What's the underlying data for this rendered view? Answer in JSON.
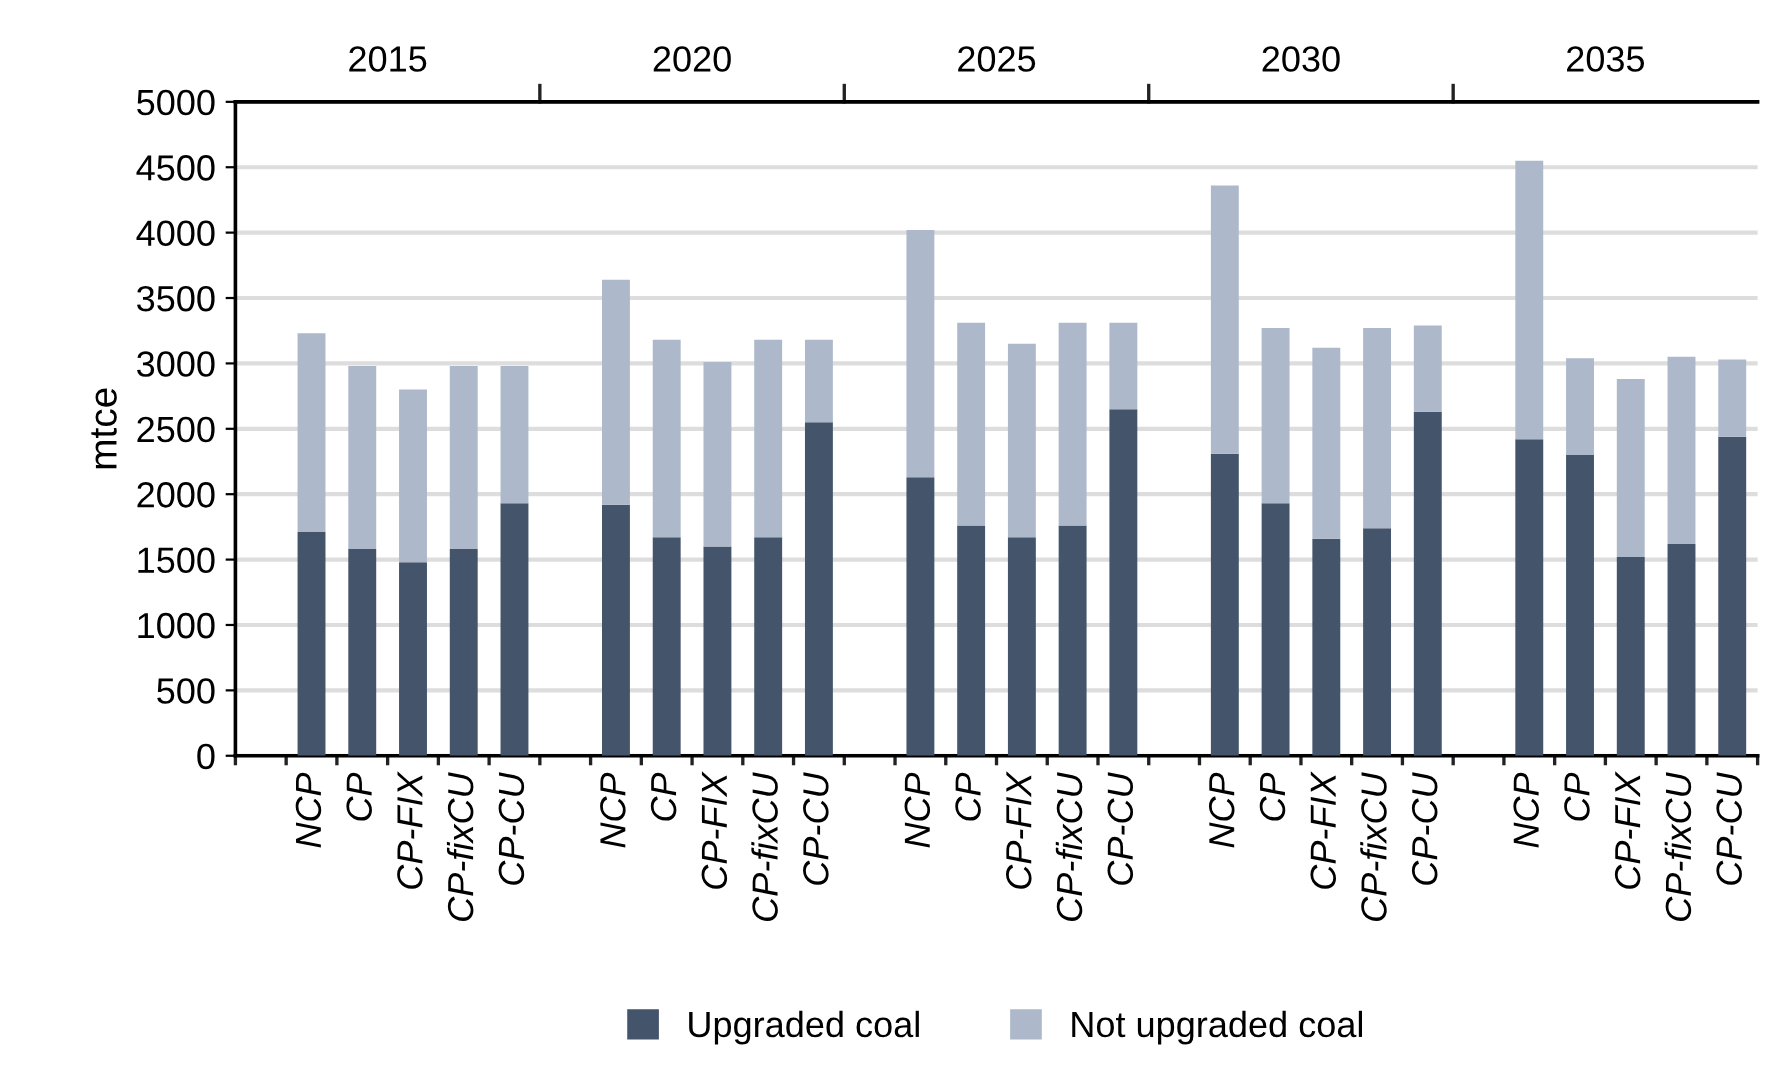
{
  "chart_data": {
    "type": "bar",
    "stacked": true,
    "ylabel": "mtce",
    "categories": [
      null,
      "NCP",
      "CP",
      "CP-FIX",
      "CP-fixCU",
      "CP-CU",
      null,
      "NCP",
      "CP",
      "CP-FIX",
      "CP-fixCU",
      "CP-CU",
      null,
      "NCP",
      "CP",
      "CP-FIX",
      "CP-fixCU",
      "CP-CU",
      null,
      "NCP",
      "CP",
      "CP-FIX",
      "CP-fixCU",
      "CP-CU",
      null,
      "NCP",
      "CP",
      "CP-FIX",
      "CP-fixCU",
      "CP-CU"
    ],
    "series": [
      {
        "name": "Upgraded coal",
        "color": "#44546a",
        "values": [
          null,
          1710,
          1580,
          1480,
          1580,
          1930,
          null,
          1920,
          1670,
          1600,
          1670,
          2550,
          null,
          2130,
          1760,
          1670,
          1760,
          2650,
          null,
          2310,
          1930,
          1660,
          1740,
          2630,
          null,
          2420,
          2300,
          1520,
          1620,
          2440
        ]
      },
      {
        "name": "Not upgraded coal",
        "color": "#adb9ca",
        "values": [
          null,
          1520,
          1400,
          1320,
          1400,
          1050,
          null,
          1720,
          1510,
          1410,
          1510,
          630,
          null,
          1890,
          1550,
          1480,
          1550,
          660,
          null,
          2050,
          1340,
          1460,
          1530,
          660,
          null,
          2130,
          740,
          1360,
          1430,
          590
        ]
      }
    ],
    "ylim": [
      0,
      5000
    ],
    "yticks": [
      0,
      500,
      1000,
      1500,
      2000,
      2500,
      3000,
      3500,
      4000,
      4500,
      5000
    ],
    "grid": "y",
    "legend": "bottom",
    "annotations": [
      "2015",
      "2020",
      "2025",
      "2030",
      "2035"
    ]
  }
}
